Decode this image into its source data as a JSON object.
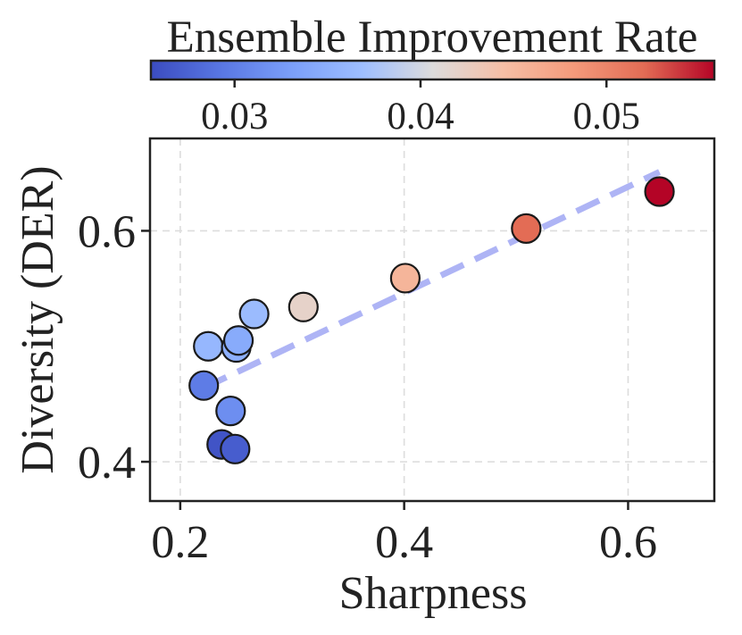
{
  "chart_data": {
    "type": "scatter",
    "xlabel": "Sharpness",
    "ylabel": "Diversity (DER)",
    "xlim": [
      0.173,
      0.677
    ],
    "ylim": [
      0.366,
      0.68
    ],
    "xticks": [
      0.2,
      0.4,
      0.6
    ],
    "xtick_labels": [
      "0.2",
      "0.4",
      "0.6"
    ],
    "yticks": [
      0.4,
      0.6
    ],
    "ytick_labels": [
      "0.4",
      "0.6"
    ],
    "grid": true,
    "colorbar": {
      "title": "Ensemble Improvement Rate",
      "min": 0.0255,
      "max": 0.0558,
      "ticks": [
        0.03,
        0.04,
        0.05
      ],
      "tick_labels": [
        "0.03",
        "0.04",
        "0.05"
      ],
      "colormap": "coolwarm",
      "position": "top"
    },
    "points": [
      {
        "x": 0.221,
        "y": 0.466,
        "c": 0.0298
      },
      {
        "x": 0.225,
        "y": 0.5,
        "c": 0.036
      },
      {
        "x": 0.237,
        "y": 0.415,
        "c": 0.0262
      },
      {
        "x": 0.245,
        "y": 0.444,
        "c": 0.0315
      },
      {
        "x": 0.249,
        "y": 0.411,
        "c": 0.027
      },
      {
        "x": 0.25,
        "y": 0.499,
        "c": 0.035
      },
      {
        "x": 0.252,
        "y": 0.505,
        "c": 0.0345
      },
      {
        "x": 0.266,
        "y": 0.528,
        "c": 0.0365
      },
      {
        "x": 0.31,
        "y": 0.534,
        "c": 0.042
      },
      {
        "x": 0.401,
        "y": 0.559,
        "c": 0.0455
      },
      {
        "x": 0.509,
        "y": 0.602,
        "c": 0.052
      },
      {
        "x": 0.628,
        "y": 0.634,
        "c": 0.0558
      }
    ],
    "trendline": {
      "x": [
        0.221,
        0.628
      ],
      "y": [
        0.464,
        0.651
      ],
      "color": "#aab0f5",
      "style": "dashed"
    }
  }
}
